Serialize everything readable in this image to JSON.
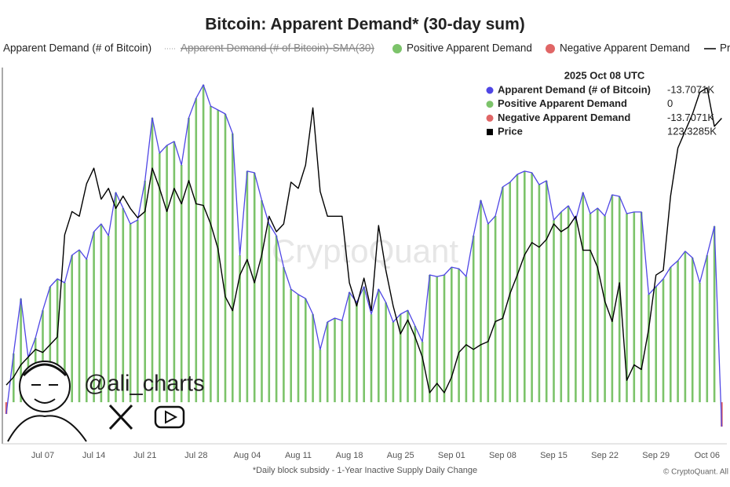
{
  "chart_data": {
    "type": "bar",
    "title": "Bitcoin: Apparent Demand* (30-day sum)",
    "footnote": "*Daily block subsidy - 1-Year Inactive Supply Daily Change",
    "copyright": "© CryptoQuant. All",
    "watermark": "CryptoQuant",
    "author": "@ali_charts",
    "tooltip_title": "2025 Oct 08 UTC",
    "categories": [
      null,
      null,
      null,
      null,
      null,
      "Jul 07",
      null,
      null,
      null,
      null,
      null,
      null,
      "Jul 14",
      null,
      null,
      null,
      null,
      null,
      null,
      "Jul 21",
      null,
      null,
      null,
      null,
      null,
      null,
      "Jul 28",
      null,
      null,
      null,
      null,
      null,
      null,
      "Aug 04",
      null,
      null,
      null,
      null,
      null,
      null,
      "Aug 11",
      null,
      null,
      null,
      null,
      null,
      null,
      "Aug 18",
      null,
      null,
      null,
      null,
      null,
      null,
      "Aug 25",
      null,
      null,
      null,
      null,
      null,
      null,
      "Sep 01",
      null,
      null,
      null,
      null,
      null,
      null,
      "Sep 08",
      null,
      null,
      null,
      null,
      null,
      null,
      "Sep 15",
      null,
      null,
      null,
      null,
      null,
      null,
      "Sep 22",
      null,
      null,
      null,
      null,
      null,
      null,
      "Sep 29",
      null,
      null,
      null,
      null,
      null,
      null,
      "Oct 06",
      null,
      null
    ],
    "ylim": [
      -23.4,
      187.4
    ],
    "y2lim": [
      102.3,
      126.5
    ],
    "series": [
      {
        "name": "Apparent Demand (# of Bitcoin)",
        "type": "line",
        "color": "#4f46e5",
        "values": [
          -6.6,
          27.4,
          58.3,
          25.2,
          36.2,
          51.7,
          65,
          69.4,
          67.2,
          82.7,
          85.7,
          80.4,
          95.9,
          100.3,
          93.7,
          118,
          109.2,
          100.3,
          102.5,
          124.6,
          160,
          140.1,
          144.5,
          146.7,
          133.5,
          160,
          171,
          178.6,
          166.6,
          164.4,
          162.2,
          151.2,
          82.7,
          130,
          129.1,
          113.6,
          100.3,
          93.7,
          76,
          63.6,
          60.6,
          58.3,
          49.5,
          29.6,
          45.1,
          47.3,
          46,
          61.9,
          56.1,
          65,
          49.5,
          63.6,
          56.1,
          45.1,
          49.5,
          51.7,
          42.9,
          34,
          71.6,
          70.7,
          71.6,
          76,
          75.1,
          70.7,
          93.7,
          113.6,
          100.3,
          104.8,
          121.1,
          123.8,
          128.2,
          130,
          129.1,
          122.4,
          124.6,
          102.5,
          107,
          110.5,
          102.5,
          118,
          106.1,
          109.2,
          104.8,
          116.7,
          115.8,
          106.1,
          107,
          107,
          60.6,
          65,
          69.4,
          76,
          79.6,
          84.9,
          81.3,
          67.2,
          82.7,
          99,
          -13.7071
        ],
        "value_labels": [
          null,
          null,
          null,
          null,
          null,
          null,
          null,
          null,
          null,
          null,
          null,
          null,
          null,
          null,
          null,
          null,
          null,
          null,
          null,
          null,
          null,
          null,
          null,
          null,
          null,
          null,
          null,
          null,
          null,
          null,
          null,
          null,
          null,
          null,
          null,
          null,
          null,
          null,
          null,
          null,
          null,
          null,
          null,
          null,
          null,
          null,
          null,
          null,
          null,
          null,
          null,
          null,
          null,
          null,
          null,
          null,
          null,
          null,
          null,
          null,
          null,
          null,
          null,
          null,
          null,
          null,
          null,
          null,
          null,
          null,
          null,
          null,
          null,
          null,
          null,
          null,
          null,
          null,
          null,
          null,
          null,
          null,
          null,
          null,
          null,
          null,
          null,
          null,
          null,
          null,
          null,
          null,
          null,
          null,
          null,
          null,
          null,
          null,
          "-13.7071K"
        ]
      },
      {
        "name": "Apparent Demand (# of Bitcoin)-SMA(30)",
        "type": "line",
        "color": "#9a9a9a",
        "hidden": true
      },
      {
        "name": "Positive Apparent Demand",
        "type": "bar",
        "color": "#7cc36a",
        "values": [
          0,
          27.4,
          58.3,
          25.2,
          36.2,
          51.7,
          65,
          69.4,
          67.2,
          82.7,
          85.7,
          80.4,
          95.9,
          100.3,
          93.7,
          118,
          109.2,
          100.3,
          102.5,
          124.6,
          160,
          140.1,
          144.5,
          146.7,
          133.5,
          160,
          171,
          178.6,
          166.6,
          164.4,
          162.2,
          151.2,
          82.7,
          130,
          129.1,
          113.6,
          100.3,
          93.7,
          76,
          63.6,
          60.6,
          58.3,
          49.5,
          29.6,
          45.1,
          47.3,
          46,
          61.9,
          56.1,
          65,
          49.5,
          63.6,
          56.1,
          45.1,
          49.5,
          51.7,
          42.9,
          34,
          71.6,
          70.7,
          71.6,
          76,
          75.1,
          70.7,
          93.7,
          113.6,
          100.3,
          104.8,
          121.1,
          123.8,
          128.2,
          130,
          129.1,
          122.4,
          124.6,
          102.5,
          107,
          110.5,
          102.5,
          118,
          106.1,
          109.2,
          104.8,
          116.7,
          115.8,
          106.1,
          107,
          107,
          60.6,
          65,
          69.4,
          76,
          79.6,
          84.9,
          81.3,
          67.2,
          82.7,
          99,
          0
        ]
      },
      {
        "name": "Negative Apparent Demand",
        "type": "bar",
        "color": "#e06666",
        "values": [
          -6.6,
          0,
          0,
          0,
          0,
          0,
          0,
          0,
          0,
          0,
          0,
          0,
          0,
          0,
          0,
          0,
          0,
          0,
          0,
          0,
          0,
          0,
          0,
          0,
          0,
          0,
          0,
          0,
          0,
          0,
          0,
          0,
          0,
          0,
          0,
          0,
          0,
          0,
          0,
          0,
          0,
          0,
          0,
          0,
          0,
          0,
          0,
          0,
          0,
          0,
          0,
          0,
          0,
          0,
          0,
          0,
          0,
          0,
          0,
          0,
          0,
          0,
          0,
          0,
          0,
          0,
          0,
          0,
          0,
          0,
          0,
          0,
          0,
          0,
          0,
          0,
          0,
          0,
          0,
          0,
          0,
          0,
          0,
          0,
          0,
          0,
          0,
          0,
          0,
          0,
          0,
          0,
          0,
          0,
          0,
          0,
          0,
          0,
          -13.7071
        ],
        "value_labels": [
          null,
          null,
          null,
          null,
          null,
          null,
          null,
          null,
          null,
          null,
          null,
          null,
          null,
          null,
          null,
          null,
          null,
          null,
          null,
          null,
          null,
          null,
          null,
          null,
          null,
          null,
          null,
          null,
          null,
          null,
          null,
          null,
          null,
          null,
          null,
          null,
          null,
          null,
          null,
          null,
          null,
          null,
          null,
          null,
          null,
          null,
          null,
          null,
          null,
          null,
          null,
          null,
          null,
          null,
          null,
          null,
          null,
          null,
          null,
          null,
          null,
          null,
          null,
          null,
          null,
          null,
          null,
          null,
          null,
          null,
          null,
          null,
          null,
          null,
          null,
          null,
          null,
          null,
          null,
          null,
          null,
          null,
          null,
          null,
          null,
          null,
          null,
          null,
          null,
          null,
          null,
          null,
          null,
          null,
          null,
          null,
          null,
          null,
          "-13.7071K"
        ]
      },
      {
        "name": "Price",
        "type": "line",
        "color": "#000000",
        "axis": "y2",
        "values": [
          106.1,
          106.6,
          107.4,
          107.9,
          108.4,
          108.2,
          108.7,
          109.2,
          115.8,
          117.3,
          117,
          119.1,
          120.1,
          118.1,
          118.8,
          117.5,
          118.3,
          117.5,
          116.9,
          117.3,
          120.1,
          118.8,
          117.3,
          118.8,
          117.8,
          119.3,
          117.8,
          117.7,
          116.5,
          114.9,
          111.8,
          110.9,
          113.2,
          114.2,
          112.7,
          114.5,
          117,
          116,
          116.5,
          119.2,
          118.8,
          120.3,
          124,
          118.6,
          117,
          117,
          117,
          112.7,
          111.2,
          113,
          110.9,
          116.4,
          113.5,
          111.2,
          109.4,
          110.3,
          109.2,
          107.9,
          105.6,
          106.2,
          105.6,
          106.6,
          108.2,
          108.7,
          108.4,
          108.7,
          108.9,
          110.2,
          110.4,
          112,
          113.2,
          114.5,
          115.3,
          115,
          115.5,
          116.5,
          116,
          116.3,
          117,
          114.8,
          114.8,
          113.7,
          111.5,
          110.2,
          112.7,
          106.4,
          107.4,
          107.1,
          109.7,
          113.2,
          113.5,
          118.3,
          121.4,
          122.5,
          123.6,
          125,
          125.3,
          122.8,
          123.3285
        ],
        "value_labels": [
          null,
          null,
          null,
          null,
          null,
          null,
          null,
          null,
          null,
          null,
          null,
          null,
          null,
          null,
          null,
          null,
          null,
          null,
          null,
          null,
          null,
          null,
          null,
          null,
          null,
          null,
          null,
          null,
          null,
          null,
          null,
          null,
          null,
          null,
          null,
          null,
          null,
          null,
          null,
          null,
          null,
          null,
          null,
          null,
          null,
          null,
          null,
          null,
          null,
          null,
          null,
          null,
          null,
          null,
          null,
          null,
          null,
          null,
          null,
          null,
          null,
          null,
          null,
          null,
          null,
          null,
          null,
          null,
          null,
          null,
          null,
          null,
          null,
          null,
          null,
          null,
          null,
          null,
          null,
          null,
          null,
          null,
          null,
          null,
          null,
          null,
          null,
          null,
          null,
          null,
          null,
          null,
          null,
          null,
          null,
          null,
          null,
          null,
          "123.3285K"
        ]
      }
    ]
  }
}
